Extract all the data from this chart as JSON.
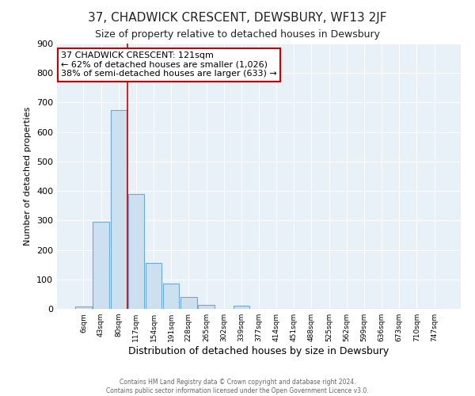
{
  "title": "37, CHADWICK CRESCENT, DEWSBURY, WF13 2JF",
  "subtitle": "Size of property relative to detached houses in Dewsbury",
  "xlabel": "Distribution of detached houses by size in Dewsbury",
  "ylabel": "Number of detached properties",
  "bar_labels": [
    "6sqm",
    "43sqm",
    "80sqm",
    "117sqm",
    "154sqm",
    "191sqm",
    "228sqm",
    "265sqm",
    "302sqm",
    "339sqm",
    "377sqm",
    "414sqm",
    "451sqm",
    "488sqm",
    "525sqm",
    "562sqm",
    "599sqm",
    "636sqm",
    "673sqm",
    "710sqm",
    "747sqm"
  ],
  "bar_values": [
    8,
    295,
    675,
    390,
    155,
    85,
    40,
    14,
    0,
    10,
    0,
    0,
    0,
    0,
    0,
    0,
    0,
    0,
    0,
    0,
    0
  ],
  "bar_color": "#cde0f0",
  "bar_edge_color": "#6aaad4",
  "figure_bg": "#ffffff",
  "axes_bg": "#e8f0f8",
  "ylim": [
    0,
    900
  ],
  "yticks": [
    0,
    100,
    200,
    300,
    400,
    500,
    600,
    700,
    800,
    900
  ],
  "annotation_title": "37 CHADWICK CRESCENT: 121sqm",
  "annotation_line1": "← 62% of detached houses are smaller (1,026)",
  "annotation_line2": "38% of semi-detached houses are larger (633) →",
  "annotation_box_color": "#ffffff",
  "annotation_box_edge": "#cc0000",
  "red_line_x": 2.5,
  "footer_line1": "Contains HM Land Registry data © Crown copyright and database right 2024.",
  "footer_line2": "Contains public sector information licensed under the Open Government Licence v3.0.",
  "grid_color": "#ffffff",
  "title_fontsize": 11,
  "subtitle_fontsize": 9
}
